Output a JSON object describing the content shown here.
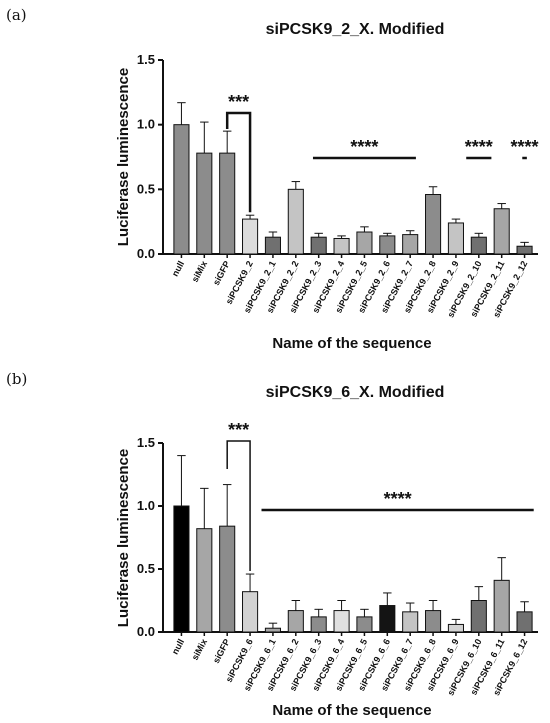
{
  "chart_data": [
    {
      "panel_label": "(a)",
      "type": "bar",
      "title": "siPCSK9_2_X. Modified",
      "xlabel": "Name of the sequence",
      "ylabel": "Luciferase luminescence",
      "ylim": [
        0,
        1.5
      ],
      "yticks": [
        "0.0",
        "0.5",
        "1.0",
        "1.5"
      ],
      "grid": false,
      "categories": [
        "null",
        "siMix",
        "siGFP",
        "siPCSK9_2",
        "siPCSK9_2_1",
        "siPCSK9_2_2",
        "siPCSK9_2_3",
        "siPCSK9_2_4",
        "siPCSK9_2_5",
        "siPCSK9_2_6",
        "siPCSK9_2_7",
        "siPCSK9_2_8",
        "siPCSK9_2_9",
        "siPCSK9_2_10",
        "siPCSK9_2_11",
        "siPCSK9_2_12"
      ],
      "values": [
        1.0,
        0.78,
        0.78,
        0.27,
        0.13,
        0.5,
        0.13,
        0.12,
        0.17,
        0.14,
        0.15,
        0.46,
        0.24,
        0.13,
        0.35,
        0.06
      ],
      "errors": [
        0.17,
        0.24,
        0.17,
        0.03,
        0.04,
        0.06,
        0.03,
        0.02,
        0.04,
        0.02,
        0.03,
        0.06,
        0.03,
        0.03,
        0.04,
        0.03
      ],
      "colors": [
        "#8c8c8c",
        "#8c8c8c",
        "#8c8c8c",
        "#dcdcdc",
        "#707070",
        "#c4c4c4",
        "#707070",
        "#c4c4c4",
        "#a6a6a6",
        "#8c8c8c",
        "#a6a6a6",
        "#8c8c8c",
        "#c4c4c4",
        "#707070",
        "#a6a6a6",
        "#707070"
      ],
      "significance": [
        {
          "label": "***",
          "from": "siGFP",
          "to": "siPCSK9_2",
          "style": "bracket-down-right"
        },
        {
          "label": "****",
          "from": "siPCSK9_2_3",
          "to": "siPCSK9_2_7",
          "style": "line"
        },
        {
          "label": "****",
          "from": "siPCSK9_2_10",
          "to": "siPCSK9_2_10",
          "style": "line"
        },
        {
          "label": "****",
          "from": "siPCSK9_2_12",
          "to": "siPCSK9_2_12",
          "style": "line"
        }
      ]
    },
    {
      "panel_label": "(b)",
      "type": "bar",
      "title": "siPCSK9_6_X.  Modified",
      "xlabel": "Name of the sequence",
      "ylabel": "Luciferase luminescence",
      "ylim": [
        0,
        1.5
      ],
      "yticks": [
        "0.0",
        "0.5",
        "1.0",
        "1.5"
      ],
      "grid": false,
      "categories": [
        "null",
        "siMix",
        "siGFP",
        "siPCSK9_6",
        "siPCSK9_6_1",
        "siPCSK9_6_2",
        "siPCSK9_6_3",
        "siPCSK9_6_4",
        "siPCSK9_6_5",
        "siPCSK9_6_6",
        "siPCSK9_6_7",
        "siPCSK9_6_8",
        "siPCSK9_6_9",
        "siPCSK9_6_10",
        "siPCSK9_6_11",
        "siPCSK9_6_12"
      ],
      "values": [
        1.0,
        0.82,
        0.84,
        0.32,
        0.03,
        0.17,
        0.12,
        0.17,
        0.12,
        0.21,
        0.16,
        0.17,
        0.06,
        0.25,
        0.41,
        0.16
      ],
      "errors": [
        0.4,
        0.32,
        0.33,
        0.14,
        0.04,
        0.08,
        0.06,
        0.08,
        0.06,
        0.1,
        0.07,
        0.08,
        0.04,
        0.11,
        0.18,
        0.08
      ],
      "colors": [
        "#000000",
        "#a6a6a6",
        "#8c8c8c",
        "#d2d2d2",
        "#a6a6a6",
        "#a6a6a6",
        "#8c8c8c",
        "#e0e0e0",
        "#8c8c8c",
        "#141414",
        "#c4c4c4",
        "#8c8c8c",
        "#d2d2d2",
        "#707070",
        "#a6a6a6",
        "#707070"
      ],
      "significance": [
        {
          "label": "***",
          "from": "siGFP",
          "to": "siPCSK9_6",
          "style": "bracket-down-right"
        },
        {
          "label": "****",
          "from": "siPCSK9_6_1",
          "to": "siPCSK9_6_12",
          "style": "line"
        }
      ]
    }
  ]
}
